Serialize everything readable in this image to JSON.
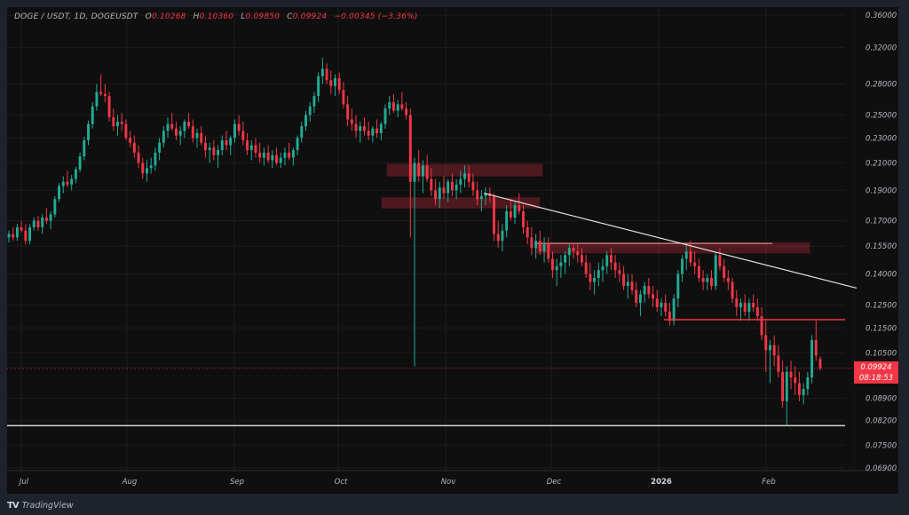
{
  "header": {
    "symbol": "DOGE / USDT, 1D, DOGEUSDT",
    "open_label": "O",
    "open_value": "0.10268",
    "high_label": "H",
    "high_value": "0.10360",
    "low_label": "L",
    "low_value": "0.09850",
    "close_label": "C",
    "close_value": "0.09924",
    "change": "−0.00345 (−3.36%)"
  },
  "price_badge": {
    "price": "0.09924",
    "countdown": "08:18:53"
  },
  "branding": {
    "logo_mark": "TV",
    "logo_text": "TradingView"
  },
  "colors": {
    "background": "#0f0f0f",
    "frame": "#1e222d",
    "up": "#22ab94",
    "down": "#f23645",
    "grid": "#1c1c1c",
    "axis_text": "#b2b5be",
    "zone_fill": "#f2364540",
    "trendline": "#e0e0e0",
    "support_line": "#d1d4dc",
    "resistance_line": "#f23645"
  },
  "chart_data": {
    "type": "candlestick",
    "title": "DOGE / USDT, 1D, DOGEUSDT",
    "xlabel": "",
    "ylabel": "",
    "y_scale": "log",
    "ylim": [
      0.068,
      0.37
    ],
    "grid": true,
    "price_ticks": [
      "0.36000",
      "0.32000",
      "0.28000",
      "0.25000",
      "0.23000",
      "0.21000",
      "0.19000",
      "0.17000",
      "0.15500",
      "0.14000",
      "0.12500",
      "0.11500",
      "0.10500",
      "0.08900",
      "0.08200",
      "0.07500",
      "0.06900"
    ],
    "price_tick_values": [
      0.36,
      0.32,
      0.28,
      0.25,
      0.23,
      0.21,
      0.19,
      0.17,
      0.155,
      0.14,
      0.125,
      0.115,
      0.105,
      0.089,
      0.082,
      0.075,
      0.069
    ],
    "time_ticks": [
      {
        "label": "Jul",
        "x": 27,
        "bold": false
      },
      {
        "label": "Aug",
        "x": 146,
        "bold": false
      },
      {
        "label": "Sep",
        "x": 267,
        "bold": false
      },
      {
        "label": "Oct",
        "x": 384,
        "bold": false
      },
      {
        "label": "Nov",
        "x": 505,
        "bold": false
      },
      {
        "label": "Dec",
        "x": 624,
        "bold": false
      },
      {
        "label": "2026",
        "x": 745,
        "bold": true
      },
      {
        "label": "Feb",
        "x": 866,
        "bold": false
      }
    ],
    "last_price": 0.09924,
    "ohlc_last": {
      "open": 0.10268,
      "high": 0.1036,
      "low": 0.0985,
      "close": 0.09924,
      "change": -0.00345,
      "change_pct": -3.36
    },
    "annotations": {
      "supply_zones": [
        {
          "x1": 436,
          "x2": 611,
          "top": 0.209,
          "bottom": 0.2
        },
        {
          "x1": 430,
          "x2": 608,
          "top": 0.185,
          "bottom": 0.178
        },
        {
          "x1": 603,
          "x2": 912,
          "top": 0.157,
          "bottom": 0.151
        }
      ],
      "zone_top_line": {
        "x1": 603,
        "x2": 870,
        "price": 0.1565
      },
      "trendline": {
        "x1": 545,
        "y1_price": 0.188,
        "x2": 965,
        "y2_price": 0.133
      },
      "resistance_line": {
        "x1": 748,
        "x2": 952,
        "price": 0.1185
      },
      "support_line": {
        "x1": 8,
        "x2": 952,
        "price": 0.0805
      },
      "last_price_line": {
        "x1": 8,
        "x2": 962,
        "price": 0.09924
      }
    },
    "candles": [
      [
        0.16,
        0.164,
        0.157,
        0.162
      ],
      [
        0.162,
        0.166,
        0.158,
        0.16
      ],
      [
        0.16,
        0.168,
        0.158,
        0.166
      ],
      [
        0.166,
        0.17,
        0.163,
        0.164
      ],
      [
        0.164,
        0.168,
        0.156,
        0.158
      ],
      [
        0.158,
        0.168,
        0.156,
        0.166
      ],
      [
        0.166,
        0.172,
        0.164,
        0.17
      ],
      [
        0.17,
        0.173,
        0.164,
        0.166
      ],
      [
        0.166,
        0.174,
        0.162,
        0.172
      ],
      [
        0.172,
        0.178,
        0.168,
        0.17
      ],
      [
        0.17,
        0.176,
        0.165,
        0.174
      ],
      [
        0.174,
        0.186,
        0.172,
        0.184
      ],
      [
        0.184,
        0.195,
        0.182,
        0.193
      ],
      [
        0.193,
        0.2,
        0.188,
        0.196
      ],
      [
        0.196,
        0.204,
        0.192,
        0.194
      ],
      [
        0.194,
        0.201,
        0.19,
        0.198
      ],
      [
        0.198,
        0.207,
        0.195,
        0.205
      ],
      [
        0.205,
        0.218,
        0.203,
        0.215
      ],
      [
        0.215,
        0.231,
        0.212,
        0.228
      ],
      [
        0.228,
        0.245,
        0.224,
        0.242
      ],
      [
        0.242,
        0.262,
        0.238,
        0.258
      ],
      [
        0.258,
        0.28,
        0.254,
        0.272
      ],
      [
        0.272,
        0.29,
        0.268,
        0.27
      ],
      [
        0.27,
        0.28,
        0.262,
        0.268
      ],
      [
        0.268,
        0.272,
        0.244,
        0.248
      ],
      [
        0.248,
        0.256,
        0.236,
        0.24
      ],
      [
        0.24,
        0.25,
        0.232,
        0.244
      ],
      [
        0.244,
        0.252,
        0.236,
        0.242
      ],
      [
        0.242,
        0.246,
        0.228,
        0.23
      ],
      [
        0.23,
        0.236,
        0.222,
        0.226
      ],
      [
        0.226,
        0.232,
        0.214,
        0.218
      ],
      [
        0.218,
        0.224,
        0.206,
        0.21
      ],
      [
        0.21,
        0.214,
        0.198,
        0.202
      ],
      [
        0.202,
        0.212,
        0.196,
        0.206
      ],
      [
        0.206,
        0.214,
        0.202,
        0.208
      ],
      [
        0.208,
        0.222,
        0.204,
        0.218
      ],
      [
        0.218,
        0.23,
        0.212,
        0.226
      ],
      [
        0.226,
        0.24,
        0.222,
        0.236
      ],
      [
        0.236,
        0.248,
        0.23,
        0.242
      ],
      [
        0.242,
        0.252,
        0.236,
        0.238
      ],
      [
        0.238,
        0.244,
        0.228,
        0.232
      ],
      [
        0.232,
        0.24,
        0.224,
        0.236
      ],
      [
        0.236,
        0.246,
        0.23,
        0.244
      ],
      [
        0.244,
        0.252,
        0.238,
        0.24
      ],
      [
        0.24,
        0.246,
        0.226,
        0.23
      ],
      [
        0.23,
        0.238,
        0.222,
        0.234
      ],
      [
        0.234,
        0.24,
        0.224,
        0.226
      ],
      [
        0.226,
        0.232,
        0.214,
        0.22
      ],
      [
        0.22,
        0.226,
        0.21,
        0.222
      ],
      [
        0.222,
        0.228,
        0.212,
        0.216
      ],
      [
        0.216,
        0.224,
        0.206,
        0.22
      ],
      [
        0.22,
        0.232,
        0.216,
        0.228
      ],
      [
        0.228,
        0.236,
        0.22,
        0.224
      ],
      [
        0.224,
        0.232,
        0.216,
        0.23
      ],
      [
        0.23,
        0.246,
        0.226,
        0.242
      ],
      [
        0.242,
        0.25,
        0.232,
        0.236
      ],
      [
        0.236,
        0.244,
        0.224,
        0.228
      ],
      [
        0.228,
        0.234,
        0.216,
        0.22
      ],
      [
        0.22,
        0.228,
        0.212,
        0.224
      ],
      [
        0.224,
        0.23,
        0.214,
        0.218
      ],
      [
        0.218,
        0.226,
        0.21,
        0.214
      ],
      [
        0.214,
        0.222,
        0.208,
        0.218
      ],
      [
        0.218,
        0.224,
        0.21,
        0.212
      ],
      [
        0.212,
        0.22,
        0.206,
        0.216
      ],
      [
        0.216,
        0.222,
        0.208,
        0.21
      ],
      [
        0.21,
        0.218,
        0.206,
        0.214
      ],
      [
        0.214,
        0.222,
        0.208,
        0.218
      ],
      [
        0.218,
        0.226,
        0.212,
        0.214
      ],
      [
        0.214,
        0.222,
        0.208,
        0.22
      ],
      [
        0.22,
        0.232,
        0.216,
        0.23
      ],
      [
        0.23,
        0.244,
        0.226,
        0.24
      ],
      [
        0.24,
        0.254,
        0.236,
        0.25
      ],
      [
        0.25,
        0.262,
        0.244,
        0.258
      ],
      [
        0.258,
        0.272,
        0.252,
        0.268
      ],
      [
        0.268,
        0.292,
        0.262,
        0.288
      ],
      [
        0.288,
        0.308,
        0.28,
        0.296
      ],
      [
        0.296,
        0.302,
        0.28,
        0.284
      ],
      [
        0.284,
        0.294,
        0.27,
        0.278
      ],
      [
        0.278,
        0.29,
        0.268,
        0.286
      ],
      [
        0.286,
        0.292,
        0.27,
        0.274
      ],
      [
        0.274,
        0.282,
        0.256,
        0.26
      ],
      [
        0.26,
        0.268,
        0.24,
        0.246
      ],
      [
        0.246,
        0.256,
        0.236,
        0.242
      ],
      [
        0.242,
        0.25,
        0.23,
        0.236
      ],
      [
        0.236,
        0.244,
        0.226,
        0.24
      ],
      [
        0.24,
        0.248,
        0.232,
        0.236
      ],
      [
        0.236,
        0.244,
        0.228,
        0.232
      ],
      [
        0.232,
        0.24,
        0.226,
        0.238
      ],
      [
        0.238,
        0.246,
        0.23,
        0.234
      ],
      [
        0.234,
        0.244,
        0.228,
        0.242
      ],
      [
        0.242,
        0.26,
        0.238,
        0.256
      ],
      [
        0.256,
        0.268,
        0.25,
        0.262
      ],
      [
        0.262,
        0.27,
        0.252,
        0.254
      ],
      [
        0.254,
        0.264,
        0.248,
        0.26
      ],
      [
        0.26,
        0.272,
        0.254,
        0.256
      ],
      [
        0.256,
        0.262,
        0.246,
        0.25
      ],
      [
        0.25,
        0.256,
        0.16,
        0.196
      ],
      [
        0.196,
        0.214,
        0.1,
        0.21
      ],
      [
        0.21,
        0.22,
        0.196,
        0.2
      ],
      [
        0.2,
        0.212,
        0.188,
        0.208
      ],
      [
        0.208,
        0.216,
        0.196,
        0.198
      ],
      [
        0.198,
        0.206,
        0.186,
        0.19
      ],
      [
        0.19,
        0.198,
        0.18,
        0.184
      ],
      [
        0.184,
        0.196,
        0.178,
        0.192
      ],
      [
        0.192,
        0.2,
        0.184,
        0.188
      ],
      [
        0.188,
        0.198,
        0.182,
        0.196
      ],
      [
        0.196,
        0.202,
        0.186,
        0.19
      ],
      [
        0.19,
        0.198,
        0.184,
        0.194
      ],
      [
        0.194,
        0.204,
        0.188,
        0.198
      ],
      [
        0.198,
        0.208,
        0.192,
        0.202
      ],
      [
        0.202,
        0.208,
        0.192,
        0.196
      ],
      [
        0.196,
        0.202,
        0.186,
        0.19
      ],
      [
        0.19,
        0.196,
        0.18,
        0.184
      ],
      [
        0.184,
        0.19,
        0.176,
        0.186
      ],
      [
        0.186,
        0.192,
        0.18,
        0.188
      ],
      [
        0.188,
        0.192,
        0.182,
        0.186
      ],
      [
        0.186,
        0.188,
        0.158,
        0.162
      ],
      [
        0.162,
        0.17,
        0.154,
        0.158
      ],
      [
        0.158,
        0.168,
        0.152,
        0.164
      ],
      [
        0.164,
        0.18,
        0.16,
        0.176
      ],
      [
        0.176,
        0.184,
        0.17,
        0.172
      ],
      [
        0.172,
        0.182,
        0.168,
        0.18
      ],
      [
        0.18,
        0.188,
        0.174,
        0.176
      ],
      [
        0.176,
        0.18,
        0.162,
        0.166
      ],
      [
        0.166,
        0.17,
        0.156,
        0.16
      ],
      [
        0.16,
        0.166,
        0.15,
        0.154
      ],
      [
        0.154,
        0.162,
        0.148,
        0.158
      ],
      [
        0.158,
        0.164,
        0.15,
        0.152
      ],
      [
        0.152,
        0.16,
        0.146,
        0.156
      ],
      [
        0.156,
        0.16,
        0.146,
        0.148
      ],
      [
        0.148,
        0.152,
        0.138,
        0.142
      ],
      [
        0.142,
        0.148,
        0.134,
        0.144
      ],
      [
        0.144,
        0.15,
        0.138,
        0.146
      ],
      [
        0.146,
        0.152,
        0.14,
        0.15
      ],
      [
        0.15,
        0.156,
        0.144,
        0.154
      ],
      [
        0.154,
        0.157,
        0.148,
        0.152
      ],
      [
        0.152,
        0.156,
        0.146,
        0.15
      ],
      [
        0.15,
        0.154,
        0.144,
        0.146
      ],
      [
        0.146,
        0.15,
        0.138,
        0.14
      ],
      [
        0.14,
        0.146,
        0.132,
        0.136
      ],
      [
        0.136,
        0.142,
        0.13,
        0.138
      ],
      [
        0.138,
        0.146,
        0.134,
        0.142
      ],
      [
        0.142,
        0.148,
        0.136,
        0.144
      ],
      [
        0.144,
        0.152,
        0.14,
        0.15
      ],
      [
        0.15,
        0.154,
        0.142,
        0.146
      ],
      [
        0.146,
        0.15,
        0.138,
        0.142
      ],
      [
        0.142,
        0.146,
        0.136,
        0.14
      ],
      [
        0.14,
        0.144,
        0.132,
        0.134
      ],
      [
        0.134,
        0.14,
        0.128,
        0.136
      ],
      [
        0.136,
        0.14,
        0.13,
        0.132
      ],
      [
        0.132,
        0.136,
        0.124,
        0.126
      ],
      [
        0.126,
        0.132,
        0.12,
        0.13
      ],
      [
        0.13,
        0.136,
        0.126,
        0.134
      ],
      [
        0.134,
        0.138,
        0.128,
        0.13
      ],
      [
        0.13,
        0.134,
        0.124,
        0.128
      ],
      [
        0.128,
        0.132,
        0.122,
        0.124
      ],
      [
        0.124,
        0.128,
        0.12,
        0.126
      ],
      [
        0.126,
        0.13,
        0.12,
        0.122
      ],
      [
        0.122,
        0.126,
        0.116,
        0.118
      ],
      [
        0.118,
        0.13,
        0.116,
        0.128
      ],
      [
        0.128,
        0.142,
        0.124,
        0.14
      ],
      [
        0.14,
        0.15,
        0.136,
        0.148
      ],
      [
        0.148,
        0.156,
        0.142,
        0.152
      ],
      [
        0.152,
        0.158,
        0.144,
        0.146
      ],
      [
        0.146,
        0.152,
        0.14,
        0.144
      ],
      [
        0.144,
        0.148,
        0.136,
        0.138
      ],
      [
        0.138,
        0.142,
        0.132,
        0.136
      ],
      [
        0.136,
        0.14,
        0.132,
        0.138
      ],
      [
        0.138,
        0.142,
        0.132,
        0.134
      ],
      [
        0.134,
        0.152,
        0.132,
        0.15
      ],
      [
        0.15,
        0.154,
        0.142,
        0.144
      ],
      [
        0.144,
        0.148,
        0.136,
        0.138
      ],
      [
        0.138,
        0.142,
        0.132,
        0.136
      ],
      [
        0.136,
        0.138,
        0.126,
        0.128
      ],
      [
        0.128,
        0.132,
        0.12,
        0.124
      ],
      [
        0.124,
        0.128,
        0.118,
        0.126
      ],
      [
        0.126,
        0.13,
        0.12,
        0.122
      ],
      [
        0.122,
        0.128,
        0.118,
        0.126
      ],
      [
        0.126,
        0.13,
        0.122,
        0.124
      ],
      [
        0.124,
        0.128,
        0.118,
        0.12
      ],
      [
        0.12,
        0.124,
        0.11,
        0.112
      ],
      [
        0.112,
        0.118,
        0.098,
        0.106
      ],
      [
        0.106,
        0.11,
        0.094,
        0.108
      ],
      [
        0.108,
        0.112,
        0.1,
        0.104
      ],
      [
        0.104,
        0.108,
        0.096,
        0.098
      ],
      [
        0.098,
        0.102,
        0.086,
        0.088
      ],
      [
        0.088,
        0.1,
        0.0805,
        0.098
      ],
      [
        0.098,
        0.102,
        0.092,
        0.096
      ],
      [
        0.096,
        0.1,
        0.09,
        0.094
      ],
      [
        0.094,
        0.098,
        0.088,
        0.09
      ],
      [
        0.09,
        0.094,
        0.087,
        0.092
      ],
      [
        0.092,
        0.098,
        0.09,
        0.096
      ],
      [
        0.096,
        0.112,
        0.094,
        0.11
      ],
      [
        0.11,
        0.118,
        0.102,
        0.104
      ],
      [
        0.1027,
        0.1036,
        0.0985,
        0.0992
      ]
    ]
  }
}
